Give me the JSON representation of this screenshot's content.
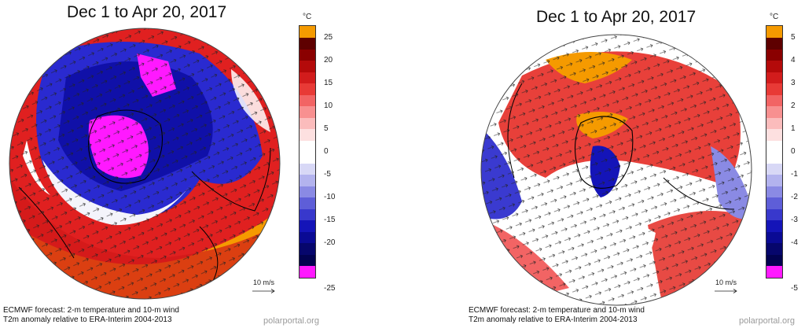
{
  "panels": [
    {
      "title": "Dec 1 to Apr 20, 2017",
      "unit": "°C",
      "ticks": [
        "25",
        "20",
        "15",
        "10",
        "5",
        "0",
        "-5",
        "-10",
        "-15",
        "-20",
        "-25"
      ],
      "colors": [
        "#f59a00",
        "#5e0000",
        "#8a0000",
        "#b40a0a",
        "#d21c1c",
        "#e83a36",
        "#f26464",
        "#f89090",
        "#fbbcbc",
        "#fde0e0",
        "#ffffff",
        "#ffffff",
        "#d8d8f6",
        "#b3b3ee",
        "#8a8ae4",
        "#5e5ed8",
        "#3838cc",
        "#1414b8",
        "#0a0a94",
        "#06066c",
        "#020250",
        "#ff19ff"
      ],
      "wind_label": "10 m/s",
      "caption_line1": "ECMWF forecast: 2-m temperature and 10-m wind",
      "caption_line2": "T2m anomaly relative to ERA-Interim 2004-2013",
      "credit": "polarportal.org"
    },
    {
      "title": "Dec 1 to Apr 20, 2017",
      "unit": "°C",
      "ticks": [
        "5",
        "4",
        "3",
        "2",
        "1",
        "0",
        "-1",
        "-2",
        "-3",
        "-4",
        "-5"
      ],
      "colors": [
        "#f59a00",
        "#5e0000",
        "#8a0000",
        "#b40a0a",
        "#d21c1c",
        "#e83a36",
        "#f26464",
        "#f89090",
        "#fbbcbc",
        "#fde0e0",
        "#ffffff",
        "#ffffff",
        "#d8d8f6",
        "#b3b3ee",
        "#8a8ae4",
        "#5e5ed8",
        "#3838cc",
        "#1414b8",
        "#0a0a94",
        "#06066c",
        "#020250",
        "#ff19ff"
      ],
      "wind_label": "10 m/s",
      "caption_line1": "ECMWF forecast: 2-m temperature and 10-m wind",
      "caption_line2": "T2m anomaly relative to ERA-Interim 2004-2013",
      "credit": "polarportal.org"
    }
  ]
}
